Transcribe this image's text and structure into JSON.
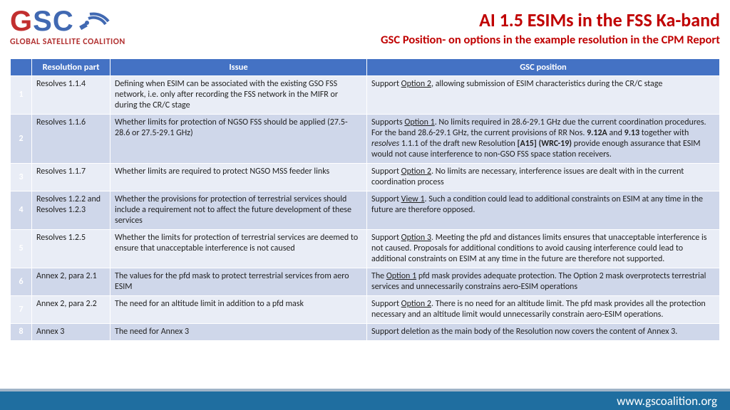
{
  "logo": {
    "letters": "GSC",
    "subtitle": "GLOBAL SATELLITE COALITION"
  },
  "title": {
    "main": "AI 1.5 ESIMs in the FSS Ka-band",
    "sub": "GSC Position- on options in the example resolution in the CPM Report"
  },
  "table": {
    "headers": {
      "part": "Resolution part",
      "issue": "Issue",
      "position": "GSC position"
    },
    "rows": [
      {
        "n": "1",
        "part": "Resolves 1.1.4",
        "issue": "Defining when ESIM can be associated with the existing GSO FSS network, i.e. only after recording the FSS network in the MIFR or during the CR/C stage",
        "position": "Support <span class=\"u\">Option 2</span>, allowing submission of ESIM characteristics during the CR/C stage"
      },
      {
        "n": "2",
        "part": "Resolves 1.1.6",
        "issue": "Whether limits for protection of NGSO FSS should be applied (27.5-28.6 or 27.5-29.1 GHz)",
        "position": "Supports <span class=\"u\">Option 1</span>.  No limits required in 28.6-29.1 GHz due the current coordination procedures. For the band 28.6-29.1 GHz, the current provisions of RR Nos. <b>9.12A</b> and <b>9.13</b> together with <i>resolves</i> 1.1.1 of the draft new Resolution <b>[A15] (WRC-19)</b> provide enough assurance that ESIM would not cause interference to non-GSO FSS space station receivers."
      },
      {
        "n": "3",
        "part": "Resolves 1.1.7",
        "issue": "Whether limits are required to protect NGSO MSS feeder links",
        "position": "Support <span class=\"u\">Option 2</span>.  No limits are necessary, interference issues are dealt with in the current coordination process"
      },
      {
        "n": "4",
        "part": "Resolves 1.2.2 and Resolves 1.2.3",
        "issue": "Whether the provisions for protection of terrestrial services should include a requirement not to affect the future development of these services",
        "position": "Support <span class=\"u\">View 1</span>.  Such a condition could lead to additional constraints on ESIM at any time in the future are therefore opposed."
      },
      {
        "n": "5",
        "part": "Resolves 1.2.5",
        "issue": "Whether the limits for protection of terrestrial services are deemed to ensure that unacceptable interference is not caused",
        "position": "Support <span class=\"u\">Option 3</span>.  Meeting the pfd and distances limits ensures that unacceptable interference is not caused.  Proposals for additional conditions to avoid causing interference could lead to additional constraints on ESIM at any time in the future are therefore not supported."
      },
      {
        "n": "6",
        "part": "Annex 2, para 2.1",
        "issue": "The values for the pfd mask to protect terrestrial services from aero ESIM",
        "position": "The <span class=\"u\">Option 1</span> pfd mask provides adequate protection.  The Option 2 mask overprotects terrestrial services and unnecessarily constrains aero-ESIM operations"
      },
      {
        "n": "7",
        "part": "Annex 2, para 2.2",
        "issue": "The need for an altitude limit in addition to a pfd mask",
        "position": "Support <span class=\"u\">Option 2</span>.  There is no need for an altitude limit.  The pfd mask provides all the protection necessary and an altitude limit would unnecessarily constrain aero-ESIM operations."
      },
      {
        "n": "8",
        "part": "Annex 3",
        "issue": "The need for Annex 3",
        "position": "Support deletion as the main body of the Resolution now covers the content of Annex 3."
      }
    ]
  },
  "footer": {
    "url": "www.gscoalition.org"
  },
  "colors": {
    "header_bg": "#4472c4",
    "row_odd": "#e9edf6",
    "row_even": "#cfd7ea",
    "title": "#c00000",
    "footer_bg": "#1f6ea0"
  }
}
